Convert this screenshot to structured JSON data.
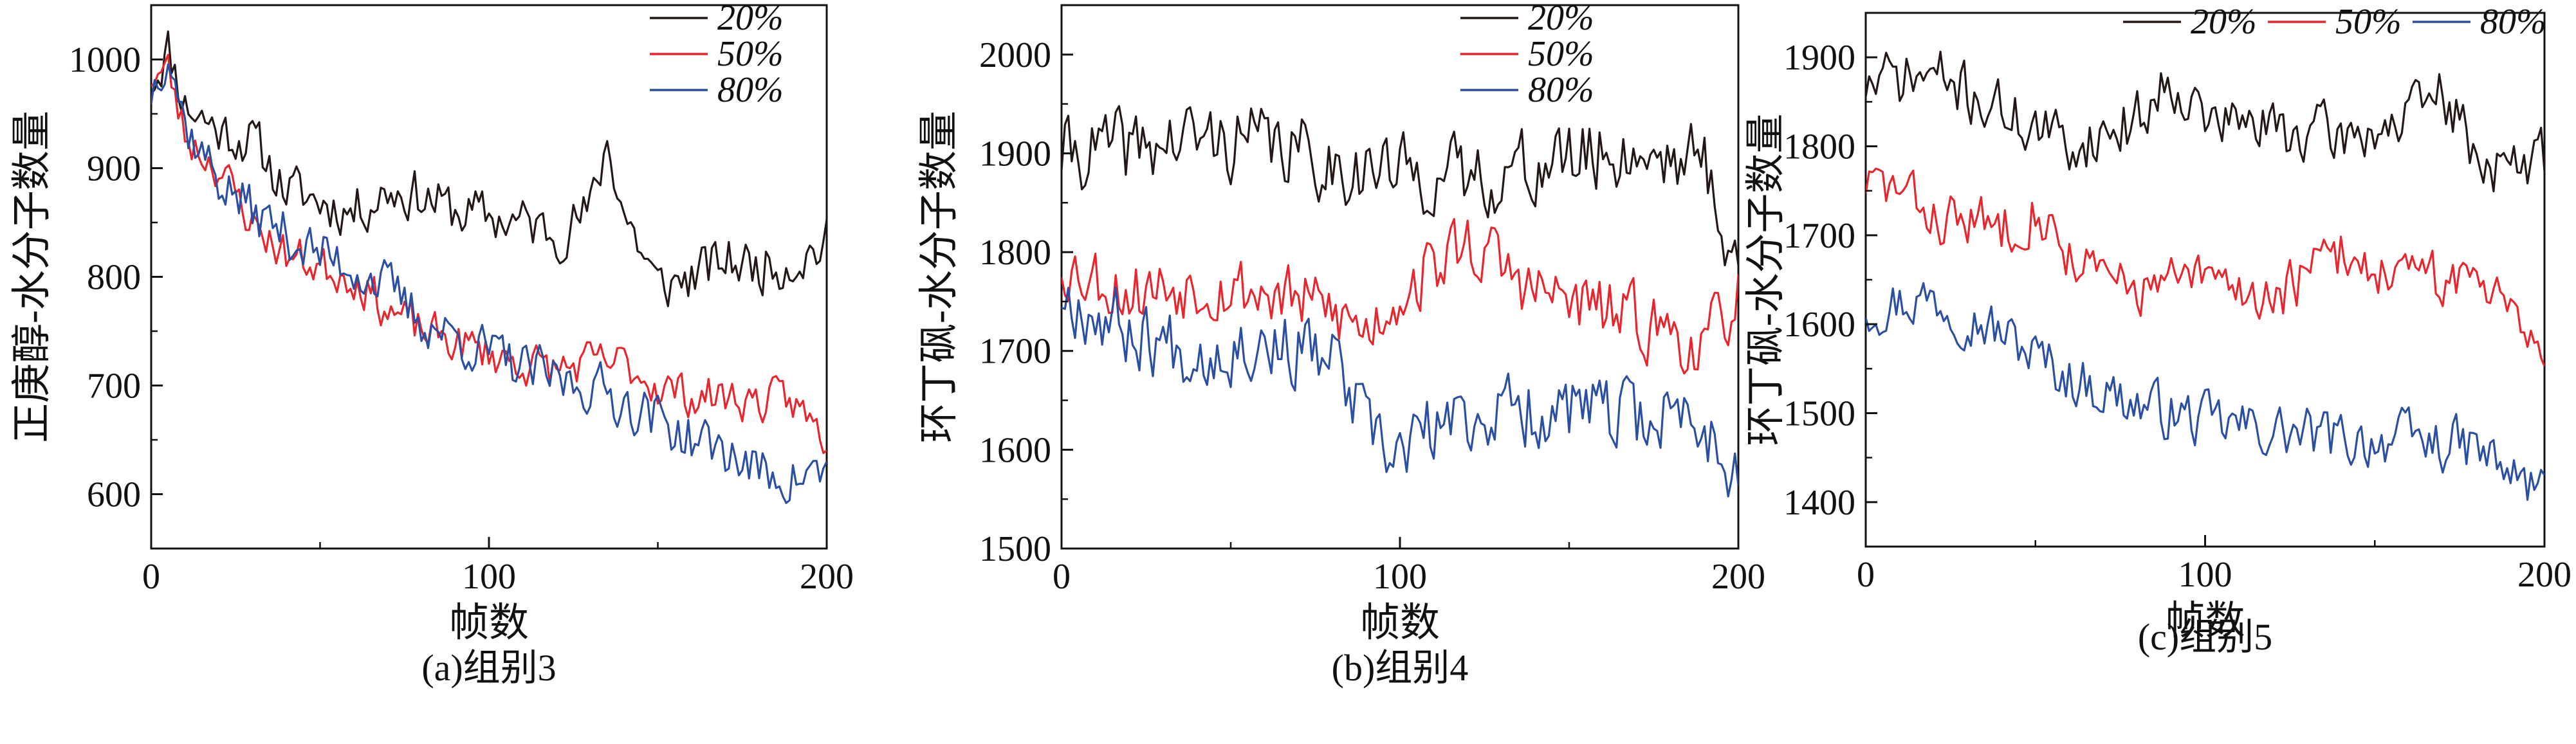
{
  "chart_data": [
    {
      "type": "line",
      "caption": "(a)组别3",
      "xlabel": "帧数",
      "ylabel": "正庚醇-水分子数量",
      "xlim": [
        0,
        200
      ],
      "ylim": [
        550,
        1050
      ],
      "xticks": [
        0,
        100,
        200
      ],
      "yticks": [
        600,
        700,
        800,
        900,
        1000
      ],
      "grid": false,
      "legend": "top-right",
      "series": [
        {
          "name": "20%",
          "color": "#231815",
          "keypoints": [
            [
              0,
              980
            ],
            [
              5,
              1010
            ],
            [
              10,
              960
            ],
            [
              20,
              935
            ],
            [
              30,
              925
            ],
            [
              40,
              880
            ],
            [
              50,
              870
            ],
            [
              60,
              860
            ],
            [
              70,
              880
            ],
            [
              80,
              875
            ],
            [
              90,
              860
            ],
            [
              100,
              855
            ],
            [
              110,
              850
            ],
            [
              120,
              840
            ],
            [
              130,
              860
            ],
            [
              135,
              925
            ],
            [
              140,
              860
            ],
            [
              150,
              790
            ],
            [
              160,
              800
            ],
            [
              170,
              815
            ],
            [
              180,
              810
            ],
            [
              190,
              815
            ],
            [
              200,
              830
            ]
          ],
          "seed": 11,
          "noise": 22
        },
        {
          "name": "50%",
          "color": "#e8262d",
          "keypoints": [
            [
              0,
              985
            ],
            [
              5,
              990
            ],
            [
              10,
              930
            ],
            [
              20,
              900
            ],
            [
              30,
              850
            ],
            [
              40,
              820
            ],
            [
              50,
              810
            ],
            [
              60,
              800
            ],
            [
              70,
              770
            ],
            [
              80,
              750
            ],
            [
              90,
              740
            ],
            [
              100,
              730
            ],
            [
              110,
              720
            ],
            [
              120,
              715
            ],
            [
              130,
              720
            ],
            [
              140,
              720
            ],
            [
              150,
              700
            ],
            [
              160,
              690
            ],
            [
              170,
              690
            ],
            [
              180,
              685
            ],
            [
              190,
              685
            ],
            [
              200,
              650
            ]
          ],
          "seed": 23,
          "noise": 18
        },
        {
          "name": "80%",
          "color": "#2b4fa2",
          "keypoints": [
            [
              0,
              970
            ],
            [
              5,
              1015
            ],
            [
              10,
              940
            ],
            [
              20,
              890
            ],
            [
              30,
              860
            ],
            [
              40,
              840
            ],
            [
              50,
              820
            ],
            [
              60,
              810
            ],
            [
              70,
              790
            ],
            [
              80,
              760
            ],
            [
              90,
              745
            ],
            [
              100,
              730
            ],
            [
              110,
              715
            ],
            [
              120,
              705
            ],
            [
              130,
              700
            ],
            [
              140,
              685
            ],
            [
              150,
              670
            ],
            [
              160,
              650
            ],
            [
              170,
              640
            ],
            [
              180,
              620
            ],
            [
              190,
              615
            ],
            [
              200,
              620
            ]
          ],
          "seed": 37,
          "noise": 22
        }
      ]
    },
    {
      "type": "line",
      "caption": "(b)组别4",
      "xlabel": "帧数",
      "ylabel": "环丁砜-水分子数量",
      "xlim": [
        0,
        200
      ],
      "ylim": [
        1500,
        2050
      ],
      "xticks": [
        0,
        100,
        200
      ],
      "yticks": [
        1500,
        1600,
        1700,
        1800,
        1900,
        2000
      ],
      "grid": false,
      "legend": "top-right",
      "series": [
        {
          "name": "20%",
          "color": "#231815",
          "keypoints": [
            [
              0,
              1900
            ],
            [
              20,
              1905
            ],
            [
              40,
              1915
            ],
            [
              60,
              1910
            ],
            [
              80,
              1890
            ],
            [
              100,
              1880
            ],
            [
              120,
              1875
            ],
            [
              140,
              1885
            ],
            [
              160,
              1900
            ],
            [
              180,
              1900
            ],
            [
              190,
              1890
            ],
            [
              200,
              1780
            ]
          ],
          "seed": 41,
          "noise": 35
        },
        {
          "name": "50%",
          "color": "#e8262d",
          "keypoints": [
            [
              0,
              1790
            ],
            [
              20,
              1760
            ],
            [
              40,
              1770
            ],
            [
              60,
              1760
            ],
            [
              80,
              1740
            ],
            [
              90,
              1720
            ],
            [
              100,
              1760
            ],
            [
              120,
              1810
            ],
            [
              140,
              1760
            ],
            [
              160,
              1740
            ],
            [
              180,
              1720
            ],
            [
              190,
              1700
            ],
            [
              200,
              1760
            ]
          ],
          "seed": 53,
          "noise": 32
        },
        {
          "name": "80%",
          "color": "#2b4fa2",
          "keypoints": [
            [
              0,
              1760
            ],
            [
              20,
              1720
            ],
            [
              40,
              1700
            ],
            [
              60,
              1710
            ],
            [
              80,
              1690
            ],
            [
              95,
              1590
            ],
            [
              110,
              1620
            ],
            [
              130,
              1640
            ],
            [
              150,
              1640
            ],
            [
              170,
              1630
            ],
            [
              185,
              1640
            ],
            [
              200,
              1580
            ]
          ],
          "seed": 67,
          "noise": 34
        }
      ]
    },
    {
      "type": "line",
      "caption": "(c)组别5",
      "xlabel": "帧数",
      "ylabel": "环丁砜-水分子数量",
      "xlim": [
        0,
        200
      ],
      "ylim": [
        1350,
        1950
      ],
      "xticks": [
        0,
        100,
        200
      ],
      "yticks": [
        1400,
        1500,
        1600,
        1700,
        1800,
        1900
      ],
      "grid": false,
      "legend": "top-center",
      "series": [
        {
          "name": "20%",
          "color": "#231815",
          "keypoints": [
            [
              0,
              1870
            ],
            [
              20,
              1880
            ],
            [
              40,
              1840
            ],
            [
              60,
              1800
            ],
            [
              80,
              1830
            ],
            [
              90,
              1880
            ],
            [
              100,
              1830
            ],
            [
              120,
              1820
            ],
            [
              140,
              1810
            ],
            [
              160,
              1830
            ],
            [
              170,
              1860
            ],
            [
              180,
              1790
            ],
            [
              190,
              1770
            ],
            [
              200,
              1790
            ]
          ],
          "seed": 71,
          "noise": 30
        },
        {
          "name": "50%",
          "color": "#e8262d",
          "keypoints": [
            [
              0,
              1760
            ],
            [
              10,
              1750
            ],
            [
              20,
              1720
            ],
            [
              40,
              1710
            ],
            [
              50,
              1730
            ],
            [
              60,
              1680
            ],
            [
              70,
              1650
            ],
            [
              80,
              1640
            ],
            [
              100,
              1650
            ],
            [
              120,
              1630
            ],
            [
              140,
              1680
            ],
            [
              160,
              1650
            ],
            [
              180,
              1650
            ],
            [
              190,
              1640
            ],
            [
              200,
              1560
            ]
          ],
          "seed": 83,
          "noise": 28
        },
        {
          "name": "80%",
          "color": "#2b4fa2",
          "keypoints": [
            [
              0,
              1620
            ],
            [
              20,
              1630
            ],
            [
              40,
              1590
            ],
            [
              60,
              1540
            ],
            [
              80,
              1510
            ],
            [
              100,
              1490
            ],
            [
              120,
              1480
            ],
            [
              140,
              1470
            ],
            [
              160,
              1470
            ],
            [
              180,
              1460
            ],
            [
              190,
              1430
            ],
            [
              200,
              1410
            ]
          ],
          "seed": 97,
          "noise": 28
        }
      ]
    }
  ]
}
